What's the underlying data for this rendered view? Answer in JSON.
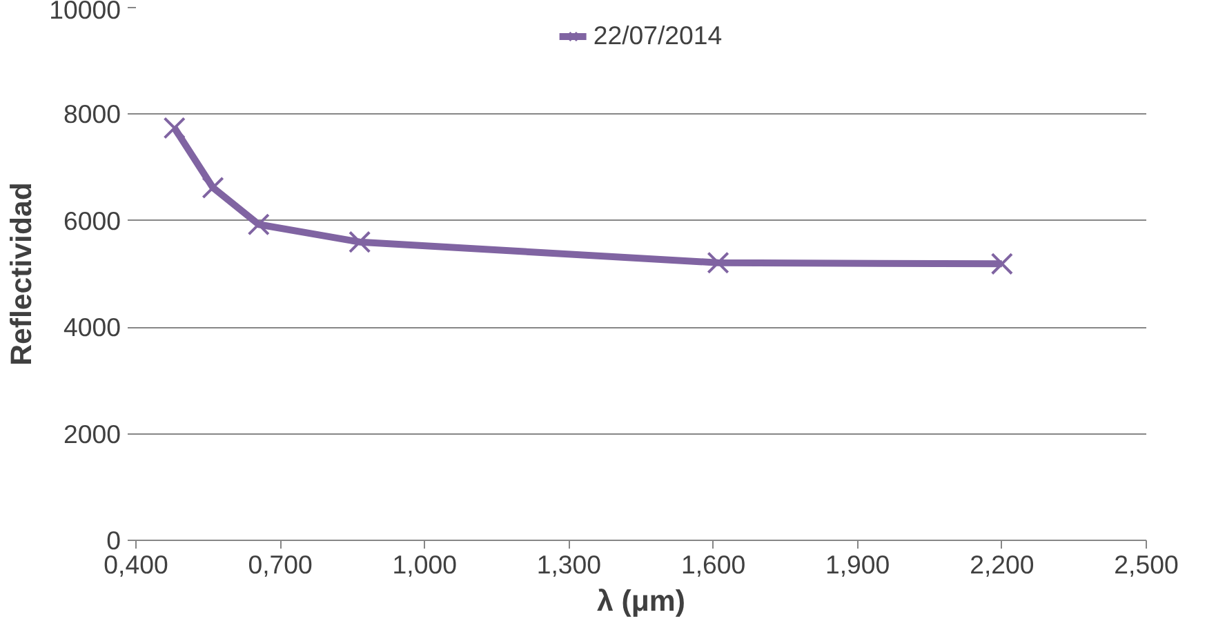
{
  "chart_data": {
    "type": "line",
    "xlabel": "λ (μm)",
    "ylabel": "Reflectividad",
    "x": [
      0.48,
      0.56,
      0.655,
      0.865,
      1.61,
      2.2
    ],
    "series": [
      {
        "name": "22/07/2014",
        "color": "#8064a2",
        "values": [
          7740,
          6620,
          5930,
          5600,
          5210,
          5190
        ]
      }
    ],
    "xlim": [
      0.4,
      2.5
    ],
    "xticks": [
      {
        "value": 0.4,
        "label": "0,400"
      },
      {
        "value": 0.7,
        "label": "0,700"
      },
      {
        "value": 1.0,
        "label": "1,000"
      },
      {
        "value": 1.3,
        "label": "1,300"
      },
      {
        "value": 1.6,
        "label": "1,600"
      },
      {
        "value": 1.9,
        "label": "1,900"
      },
      {
        "value": 2.2,
        "label": "2,200"
      },
      {
        "value": 2.5,
        "label": "2,500"
      }
    ],
    "ylim": [
      0,
      10000
    ],
    "yticks": [
      0,
      2000,
      4000,
      6000,
      8000,
      10000
    ],
    "grid": "y",
    "legend": "top",
    "marker": "cross",
    "line_style": "solid"
  }
}
